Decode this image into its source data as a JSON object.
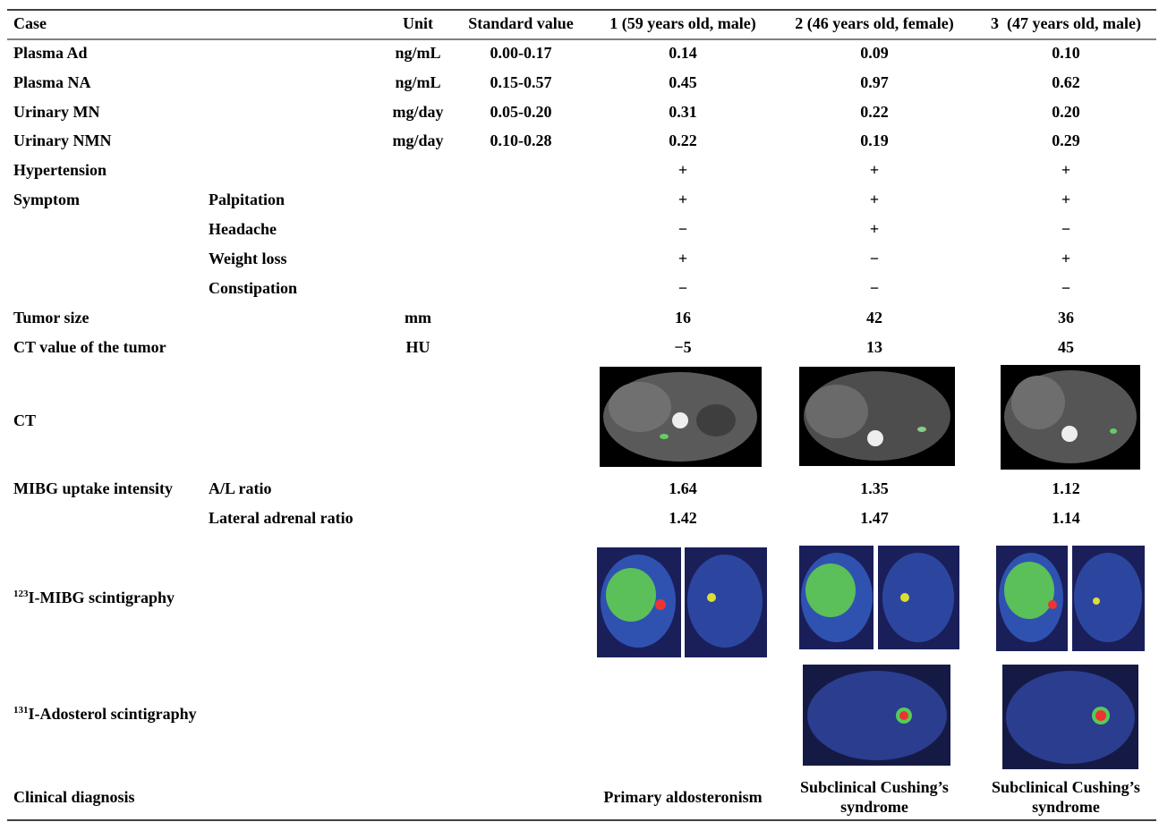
{
  "header": {
    "case": "Case",
    "unit": "Unit",
    "standard": "Standard value",
    "cases": [
      "1 (59 years old, male)",
      "2 (46 years old, female)",
      "3  (47 years old, male)"
    ]
  },
  "rows": [
    {
      "label": "Plasma Ad",
      "unit": "ng/mL",
      "standard": "0.00-0.17",
      "values": [
        "0.14",
        "0.09",
        "0.10"
      ]
    },
    {
      "label": "Plasma NA",
      "unit": "ng/mL",
      "standard": "0.15-0.57",
      "values": [
        "0.45",
        "0.97",
        "0.62"
      ]
    },
    {
      "label": "Urinary MN",
      "unit": "mg/day",
      "standard": "0.05-0.20",
      "values": [
        "0.31",
        "0.22",
        "0.20"
      ]
    },
    {
      "label": "Urinary NMN",
      "unit": "mg/day",
      "standard": "0.10-0.28",
      "values": [
        "0.22",
        "0.19",
        "0.29"
      ]
    },
    {
      "label": "Hypertension",
      "values": [
        "+",
        "+",
        "+"
      ]
    },
    {
      "label": "Symptom",
      "sub": "Palpitation",
      "values": [
        "+",
        "+",
        "+"
      ]
    },
    {
      "sub": "Headache",
      "values": [
        "−",
        "+",
        "−"
      ]
    },
    {
      "sub": "Weight loss",
      "values": [
        "+",
        "−",
        "+"
      ]
    },
    {
      "sub": "Constipation",
      "values": [
        "−",
        "−",
        "−"
      ]
    },
    {
      "label": "Tumor size",
      "unit": "mm",
      "values": [
        "16",
        "42",
        "36"
      ]
    },
    {
      "label": "CT value of the tumor",
      "unit": "HU",
      "values": [
        "−5",
        "13",
        "45"
      ]
    },
    {
      "label": "CT"
    },
    {
      "label": "MIBG uptake intensity",
      "sub": "A/L ratio",
      "values": [
        "1.64",
        "1.35",
        "1.12"
      ]
    },
    {
      "sub": "Lateral adrenal ratio",
      "values": [
        "1.42",
        "1.47",
        "1.14"
      ]
    },
    {
      "isotope": "123",
      "name": "I-MIBG scintigraphy"
    },
    {
      "isotope": "131",
      "name": "I-Adosterol scintigraphy"
    },
    {
      "label": "Clinical diagnosis",
      "values": [
        [
          "Primary aldosteronism"
        ],
        [
          "Subclinical Cushing’s",
          "syndrome"
        ],
        [
          "Subclinical Cushing’s",
          "syndrome"
        ]
      ]
    }
  ]
}
